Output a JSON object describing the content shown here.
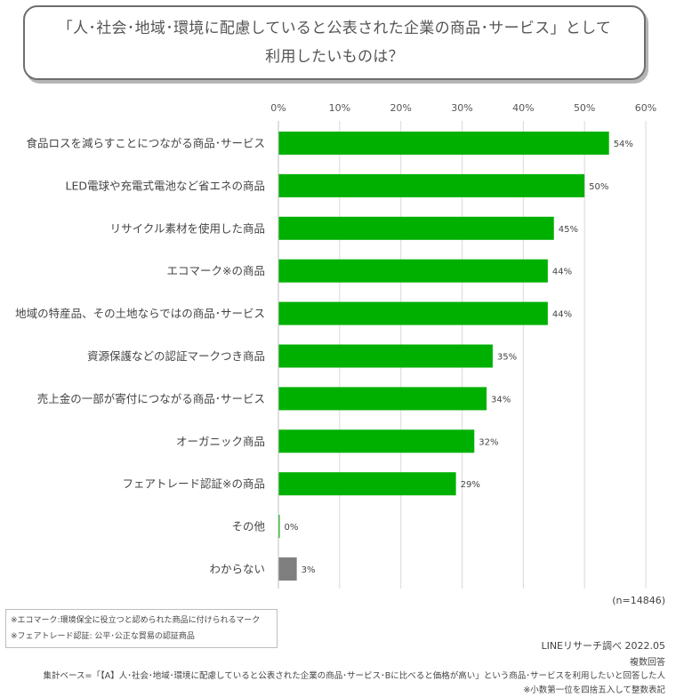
{
  "title": {
    "line1": "「人･社会･地域･環境に配慮していると公表された企業の商品･サービス」として",
    "line2": "利用したいものは？"
  },
  "chart_data": {
    "type": "bar",
    "orientation": "horizontal",
    "categories": [
      "食品ロスを減らすことにつながる商品･サービス",
      "LED電球や充電式電池など省エネの商品",
      "リサイクル素材を使用した商品",
      "エコマーク※の商品",
      "地域の特産品、その土地ならではの商品･サービス",
      "資源保護などの認証マークつき商品",
      "売上金の一部が寄付につながる商品･サービス",
      "オーガニック商品",
      "フェアトレード認証※の商品",
      "その他",
      "わからない"
    ],
    "values": [
      54,
      50,
      45,
      44,
      44,
      35,
      34,
      32,
      29,
      0,
      3
    ],
    "value_labels": [
      "54%",
      "50%",
      "45%",
      "44%",
      "44%",
      "35%",
      "34%",
      "32%",
      "29%",
      "0%",
      "3%"
    ],
    "colors": [
      "#00b000",
      "#00b000",
      "#00b000",
      "#00b000",
      "#00b000",
      "#00b000",
      "#00b000",
      "#00b000",
      "#00b000",
      "#00b000",
      "#7f7f7f"
    ],
    "xlim": [
      0,
      60
    ],
    "xticks": [
      "0%",
      "10%",
      "20%",
      "30%",
      "40%",
      "50%",
      "60%"
    ],
    "grid": true,
    "xlabel": "",
    "ylabel": ""
  },
  "sample": "(n=14846)",
  "notes": [
    "※エコマーク:環境保全に役立つと認められた商品に付けられるマーク",
    "※フェアトレード認証: 公平･公正な貿易の認証商品"
  ],
  "footer": {
    "source": "LINEリサーチ調べ 2022.05",
    "answer_type": "複数回答",
    "base": "集計ベース=「【A】人･社会･地域･環境に配慮していると公表された企業の商品･サービス･Bに比べると価格が高い」という商品･サービスを利用したいと回答した人",
    "rounding": "※小数第一位を四捨五入して整数表記"
  }
}
